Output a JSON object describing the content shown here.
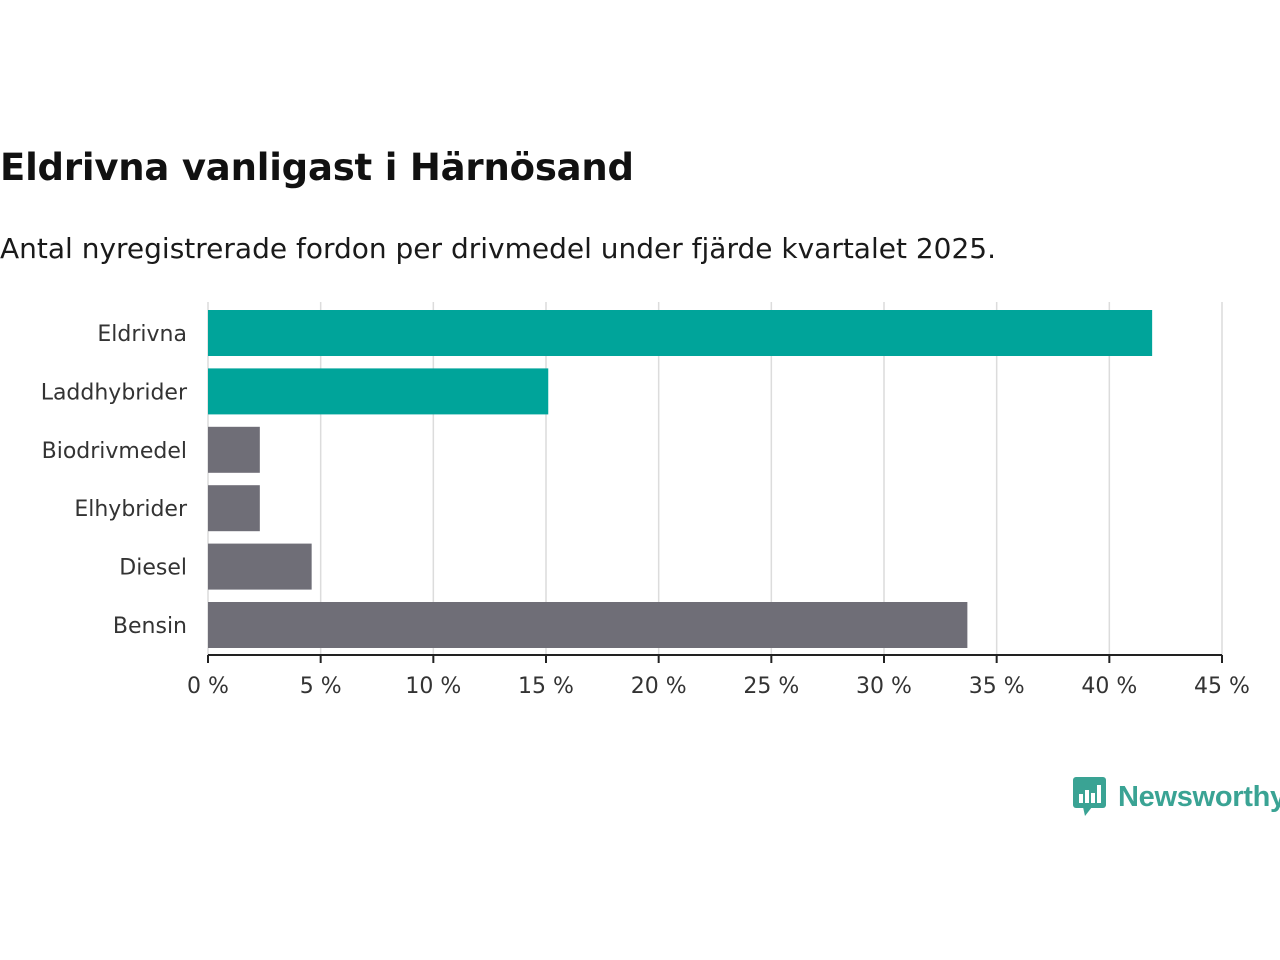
{
  "chart_data": {
    "type": "bar",
    "orientation": "horizontal",
    "title": "Eldrivna vanligast i Härnösand",
    "subtitle": "Antal nyregistrerade fordon per drivmedel under fjärde kvartalet 2025.",
    "categories": [
      "Eldrivna",
      "Laddhybrider",
      "Biodrivmedel",
      "Elhybrider",
      "Diesel",
      "Bensin"
    ],
    "values": [
      41.9,
      15.1,
      2.3,
      2.3,
      4.6,
      33.7
    ],
    "colors": [
      "#00a49a",
      "#00a49a",
      "#6f6e77",
      "#6f6e77",
      "#6f6e77",
      "#6f6e77"
    ],
    "xlim": [
      0,
      45
    ],
    "ticks": [
      0,
      5,
      10,
      15,
      20,
      25,
      30,
      35,
      40,
      45
    ],
    "tick_labels": [
      "0 %",
      "5 %",
      "10 %",
      "15 %",
      "20 %",
      "25 %",
      "30 %",
      "35 %",
      "40 %",
      "45 %"
    ],
    "grid": true,
    "xlabel": "",
    "ylabel": ""
  },
  "logo": {
    "text": "Newsworthy",
    "color": "#3aa394"
  }
}
